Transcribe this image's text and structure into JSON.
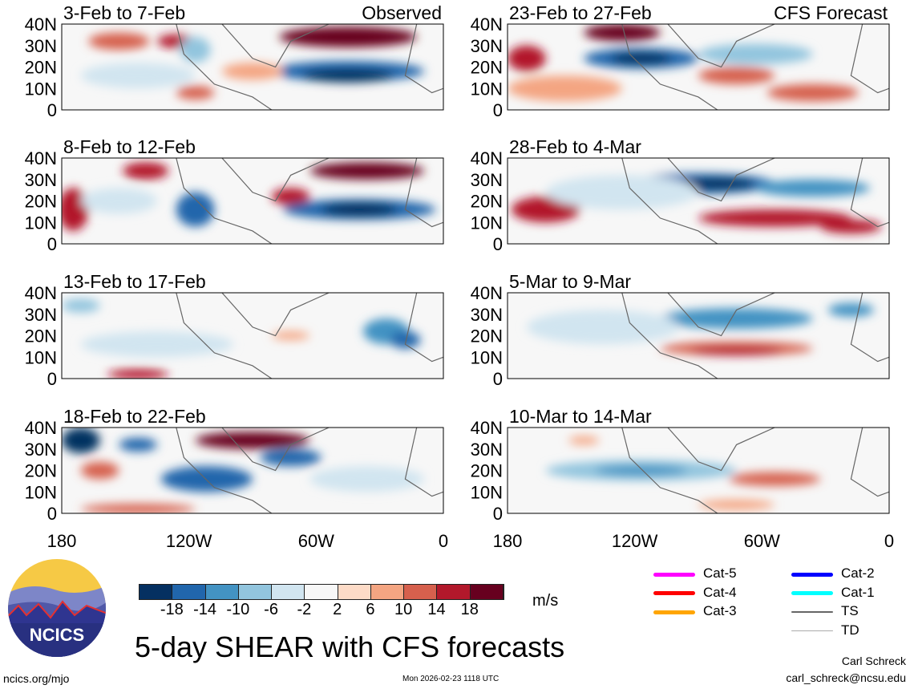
{
  "chart_data": {
    "type": "heatmap",
    "title": "5-day SHEAR with CFS forecasts",
    "units": "m/s",
    "y_ticks": [
      "40N",
      "30N",
      "20N",
      "10N",
      "0"
    ],
    "x_ticks": [
      "180",
      "120W",
      "60W",
      "0"
    ],
    "colorbar": {
      "ticks": [
        "-18",
        "-14",
        "-10",
        "-6",
        "-2",
        "2",
        "6",
        "10",
        "14",
        "18"
      ],
      "colors": [
        "#053061",
        "#2166ac",
        "#4393c3",
        "#92c5de",
        "#d1e5f0",
        "#f7f7f7",
        "#fddbc7",
        "#f4a582",
        "#d6604d",
        "#b2182b",
        "#67001f"
      ]
    },
    "panels": [
      {
        "label": "3-Feb to 7-Feb",
        "tag": "Observed"
      },
      {
        "label": "23-Feb to 27-Feb",
        "tag": "CFS Forecast"
      },
      {
        "label": "8-Feb to 12-Feb",
        "tag": ""
      },
      {
        "label": "28-Feb to 4-Mar",
        "tag": ""
      },
      {
        "label": "13-Feb to 17-Feb",
        "tag": ""
      },
      {
        "label": "5-Mar to 9-Mar",
        "tag": ""
      },
      {
        "label": "18-Feb to 22-Feb",
        "tag": ""
      },
      {
        "label": "10-Mar to 14-Mar",
        "tag": ""
      }
    ],
    "legend": [
      {
        "label": "Cat-5",
        "color": "#ff00ff"
      },
      {
        "label": "Cat-4",
        "color": "#ff0000"
      },
      {
        "label": "Cat-3",
        "color": "#ffa500"
      },
      {
        "label": "Cat-2",
        "color": "#0000ff"
      },
      {
        "label": "Cat-1",
        "color": "#00ffff"
      },
      {
        "label": "TS",
        "color": "#666666"
      },
      {
        "label": "TD",
        "color": "#aaaaaa"
      }
    ]
  },
  "footer": {
    "logo_text": "NCICS",
    "url": "ncics.org/mjo",
    "timestamp": "Mon 2026-02-23 1118 UTC",
    "author": "Carl Schreck",
    "email": "carl_schreck@ncsu.edu"
  }
}
